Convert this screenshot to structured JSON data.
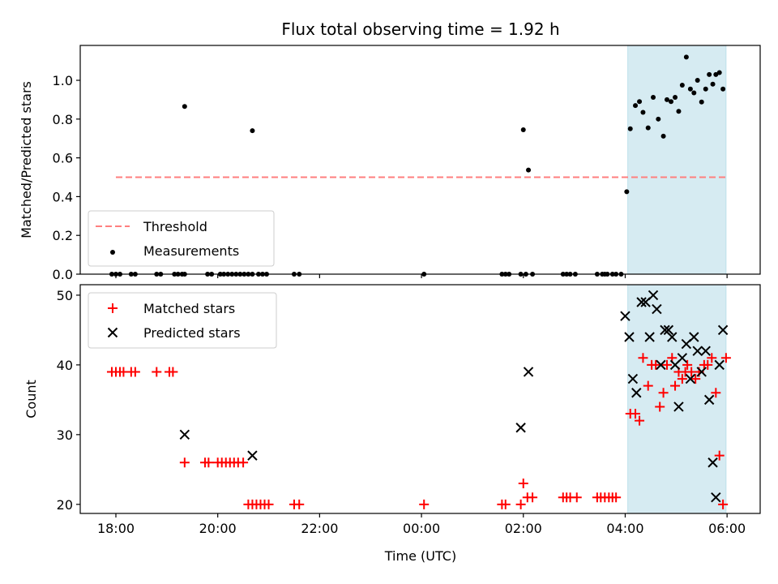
{
  "chart_data": [
    {
      "type": "scatter",
      "title": "Flux total observing time = 1.92 h",
      "ylabel": "Matched/Predicted stars",
      "xlabel": "",
      "x_unit": "hours since 18:00 UTC",
      "xlim": [
        -0.7,
        12.65
      ],
      "ylim": [
        0.0,
        1.18
      ],
      "yticks": [
        0.0,
        0.2,
        0.4,
        0.6,
        0.8,
        1.0
      ],
      "ytick_labels": [
        "0.0",
        "0.2",
        "0.4",
        "0.6",
        "0.8",
        "1.0"
      ],
      "xticks": [
        0,
        2,
        4,
        6,
        8,
        10,
        12
      ],
      "xtick_labels": [
        "",
        "",
        "",
        "",
        "",
        "",
        ""
      ],
      "shaded_span": {
        "x": [
          10.05,
          11.98
        ],
        "color": "#add8e6"
      },
      "threshold": {
        "name": "Threshold",
        "y": 0.5,
        "x": [
          0,
          11.98
        ],
        "color": "#ff7f7f"
      },
      "series": [
        {
          "name": "Measurements",
          "color": "#000000",
          "marker": "dot",
          "x": [
            -0.08,
            0.0,
            0.08,
            0.3,
            0.38,
            0.8,
            0.88,
            1.15,
            1.22,
            1.3,
            1.35,
            1.8,
            1.88,
            2.05,
            2.12,
            2.2,
            2.28,
            2.36,
            2.44,
            2.52,
            2.6,
            2.68,
            2.8,
            2.88,
            2.96,
            3.5,
            3.6,
            6.05,
            7.58,
            7.65,
            7.72,
            7.95,
            8.05,
            8.18,
            8.78,
            8.85,
            8.92,
            9.02,
            9.45,
            9.55,
            9.6,
            9.65,
            9.75,
            9.82,
            9.92,
            1.35,
            2.68,
            8.0,
            8.1,
            10.03,
            10.1,
            10.2,
            10.28,
            10.35,
            10.45,
            10.55,
            10.65,
            10.75,
            10.82,
            10.9,
            10.98,
            11.05,
            11.12,
            11.2,
            11.28,
            11.35,
            11.42,
            11.5,
            11.58,
            11.65,
            11.72,
            11.78,
            11.85,
            11.92
          ],
          "y": [
            0,
            0,
            0,
            0,
            0,
            0,
            0,
            0,
            0,
            0,
            0,
            0,
            0,
            0,
            0,
            0,
            0,
            0,
            0,
            0,
            0,
            0,
            0,
            0,
            0,
            0,
            0,
            0,
            0,
            0,
            0,
            0,
            0,
            0,
            0,
            0,
            0,
            0,
            0,
            0,
            0,
            0,
            0,
            0,
            0,
            0.865,
            0.74,
            0.745,
            0.537,
            0.425,
            0.75,
            0.87,
            0.89,
            0.835,
            0.755,
            0.912,
            0.8,
            0.712,
            0.9,
            0.89,
            0.912,
            0.84,
            0.975,
            1.12,
            0.955,
            0.935,
            1.0,
            0.888,
            0.955,
            1.03,
            0.98,
            1.03,
            1.04,
            0.955
          ]
        }
      ],
      "legend": {
        "entries": [
          "Threshold",
          "Measurements"
        ],
        "placement": "lower-left"
      }
    },
    {
      "type": "scatter",
      "title": "",
      "ylabel": "Count",
      "xlabel": "Time (UTC)",
      "x_unit": "hours since 18:00 UTC",
      "xlim": [
        -0.7,
        12.65
      ],
      "ylim": [
        18.7,
        51.5
      ],
      "yticks": [
        20,
        30,
        40,
        50
      ],
      "ytick_labels": [
        "20",
        "30",
        "40",
        "50"
      ],
      "xticks": [
        0,
        2,
        4,
        6,
        8,
        10,
        12
      ],
      "xtick_labels": [
        "18:00",
        "20:00",
        "22:00",
        "00:00",
        "02:00",
        "04:00",
        "06:00"
      ],
      "shaded_span": {
        "x": [
          10.05,
          11.98
        ],
        "color": "#add8e6"
      },
      "series": [
        {
          "name": "Matched stars",
          "color": "#ff0000",
          "marker": "plus",
          "x": [
            -0.08,
            0.0,
            0.08,
            0.15,
            0.3,
            0.38,
            0.8,
            1.05,
            1.12,
            1.35,
            1.75,
            1.82,
            2.0,
            2.08,
            2.16,
            2.24,
            2.32,
            2.4,
            2.5,
            2.6,
            2.68,
            2.76,
            2.84,
            2.92,
            3.0,
            3.5,
            3.6,
            6.05,
            7.58,
            7.65,
            7.95,
            8.0,
            8.08,
            8.18,
            8.78,
            8.85,
            8.92,
            9.05,
            9.45,
            9.52,
            9.6,
            9.68,
            9.75,
            9.82,
            10.1,
            10.2,
            10.28,
            10.35,
            10.45,
            10.52,
            10.6,
            10.68,
            10.75,
            10.82,
            10.92,
            10.98,
            11.05,
            11.12,
            11.18,
            11.22,
            11.3,
            11.38,
            11.45,
            11.55,
            11.62,
            11.7,
            11.78,
            11.85,
            11.92,
            11.98
          ],
          "y": [
            39,
            39,
            39,
            39,
            39,
            39,
            39,
            39,
            39,
            26,
            26,
            26,
            26,
            26,
            26,
            26,
            26,
            26,
            26,
            20,
            20,
            20,
            20,
            20,
            20,
            20,
            20,
            20,
            20,
            20,
            20,
            23,
            21,
            21,
            21,
            21,
            21,
            21,
            21,
            21,
            21,
            21,
            21,
            21,
            33,
            33,
            32,
            41,
            37,
            40,
            40,
            34,
            36,
            40,
            41,
            37,
            39,
            38,
            39,
            40,
            39,
            38,
            39,
            40,
            40,
            41,
            36,
            27,
            20,
            41
          ],
          "note": ""
        },
        {
          "name": "Predicted stars",
          "color": "#000000",
          "marker": "x",
          "x": [
            1.35,
            2.68,
            7.95,
            8.1,
            10.0,
            10.08,
            10.15,
            10.22,
            10.32,
            10.4,
            10.48,
            10.55,
            10.62,
            10.7,
            10.78,
            10.85,
            10.92,
            10.98,
            11.05,
            11.12,
            11.2,
            11.28,
            11.35,
            11.42,
            11.5,
            11.58,
            11.65,
            11.72,
            11.78,
            11.85,
            11.92
          ],
          "y": [
            30,
            27,
            31,
            39,
            47,
            44,
            38,
            36,
            49,
            49,
            44,
            50,
            48,
            40,
            45,
            45,
            44,
            40,
            34,
            41,
            43,
            38,
            44,
            42,
            39,
            42,
            35,
            26,
            21,
            40,
            45
          ]
        }
      ],
      "legend": {
        "entries": [
          "Matched stars",
          "Predicted stars"
        ],
        "placement": "upper-left"
      }
    }
  ]
}
